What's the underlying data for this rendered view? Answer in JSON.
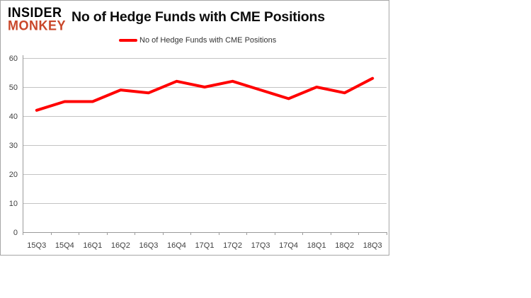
{
  "header": {
    "logo_line1": "INSIDER",
    "logo_line2": "MONKEY",
    "title": "No of Hedge Funds with CME Positions"
  },
  "legend": {
    "label": "No of Hedge Funds with CME Positions",
    "line_color": "#ff0000"
  },
  "chart_data": {
    "type": "line",
    "title": "No of Hedge Funds with CME Positions",
    "categories": [
      "15Q3",
      "15Q4",
      "16Q1",
      "16Q2",
      "16Q3",
      "16Q4",
      "17Q1",
      "17Q2",
      "17Q3",
      "17Q4",
      "18Q1",
      "18Q2",
      "18Q3"
    ],
    "series": [
      {
        "name": "No of Hedge Funds with CME Positions",
        "color": "#ff0000",
        "values": [
          42,
          45,
          45,
          49,
          48,
          52,
          50,
          52,
          49,
          46,
          50,
          48,
          53
        ]
      }
    ],
    "xlabel": "",
    "ylabel": "",
    "ylim": [
      0,
      60
    ],
    "yticks": [
      0,
      10,
      20,
      30,
      40,
      50,
      60
    ],
    "grid": "horizontal",
    "legend_position": "top-center"
  },
  "colors": {
    "accent_red": "#ff0000",
    "logo_monkey_red": "#c9472a",
    "grid_line": "#c3c3c3",
    "axis_line": "#9a9a9a",
    "axis_text": "#404040",
    "chart_border": "#a6a6a6",
    "background": "#ffffff"
  }
}
